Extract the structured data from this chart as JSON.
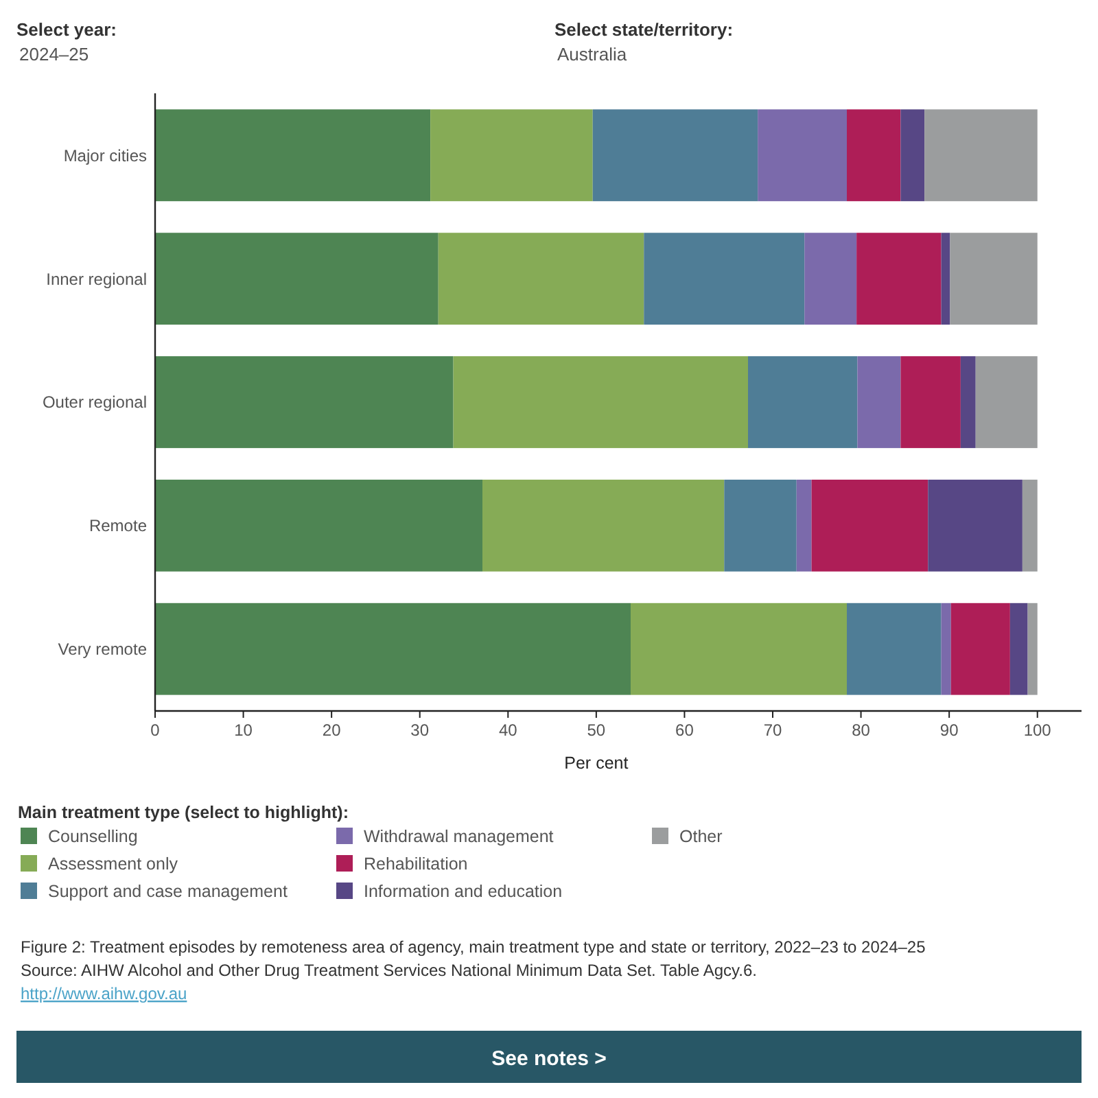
{
  "chart_data": {
    "type": "bar",
    "orientation": "horizontal",
    "stacked": true,
    "categories": [
      "Major cities",
      "Inner regional",
      "Outer regional",
      "Remote",
      "Very remote"
    ],
    "series": [
      {
        "name": "Counselling",
        "color": "#4e8553",
        "values": [
          31.2,
          32.1,
          33.8,
          37.1,
          53.9
        ]
      },
      {
        "name": "Assessment only",
        "color": "#86ab56",
        "values": [
          18.4,
          23.3,
          33.4,
          27.4,
          24.5
        ]
      },
      {
        "name": "Support and case management",
        "color": "#4f7d96",
        "values": [
          18.7,
          18.2,
          12.4,
          8.2,
          10.7
        ]
      },
      {
        "name": "Withdrawal management",
        "color": "#7b6aab",
        "values": [
          10.1,
          5.9,
          4.9,
          1.7,
          1.1
        ]
      },
      {
        "name": "Rehabilitation",
        "color": "#ae1e57",
        "values": [
          6.1,
          9.6,
          6.8,
          13.2,
          6.7
        ]
      },
      {
        "name": "Information and education",
        "color": "#574785",
        "values": [
          2.7,
          1.0,
          1.7,
          10.7,
          2.0
        ]
      },
      {
        "name": "Other",
        "color": "#9b9d9e",
        "values": [
          12.8,
          9.9,
          7.0,
          1.7,
          1.1
        ]
      }
    ],
    "xlim": [
      0,
      105
    ],
    "xticks": [
      0,
      10,
      20,
      30,
      40,
      50,
      60,
      70,
      80,
      90,
      100
    ],
    "xlabel": "Per cent",
    "legend_title": "Main treatment type (select to highlight):",
    "legend": "bottom",
    "grid": false,
    "annotations": [
      "Select year:",
      "2024–25",
      "Select state/territory:",
      "Australia",
      "Figure 2: Treatment episodes by remoteness area of agency, main treatment type and state or territory, 2022–23 to 2024–25",
      "Source: AIHW Alcohol and Other Drug Treatment Services National Minimum Data Set. Table Agcy.6.",
      "http://www.aihw.gov.au",
      "See notes >"
    ]
  }
}
